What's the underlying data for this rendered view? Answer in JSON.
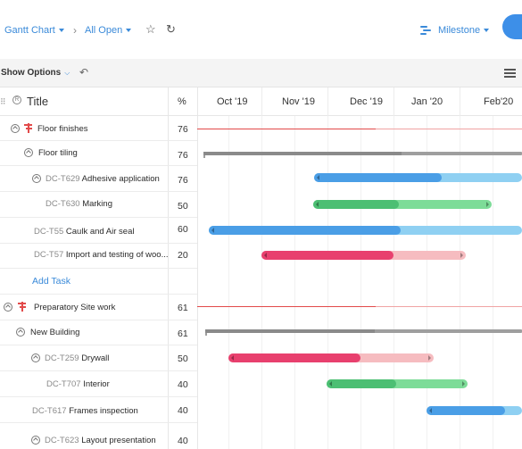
{
  "toolbar": {
    "view_label": "Gantt Chart",
    "filter_label": "All Open",
    "milestone_label": "Milestone"
  },
  "options": {
    "show_options_label": "Show Options"
  },
  "grid": {
    "title_header": "Title",
    "percent_header": "%",
    "months": [
      "Oct '19",
      "Nov '19",
      "Dec '19",
      "Jan '20",
      "Feb'20"
    ],
    "add_task_label": "Add Task"
  },
  "rows": [
    {
      "code": "",
      "name": "Floor finishes",
      "percent": "76"
    },
    {
      "code": "",
      "name": "Floor tiling",
      "percent": "76"
    },
    {
      "code": "DC-T629",
      "name": "Adhesive application",
      "percent": "76"
    },
    {
      "code": "DC-T630",
      "name": "Marking",
      "percent": "50"
    },
    {
      "code": "DC-T55",
      "name": "Caulk and Air seal",
      "percent": "60"
    },
    {
      "code": "DC-T57",
      "name": "Import and testing of woo...",
      "percent": "20"
    },
    {
      "code": "",
      "name": "Preparatory Site work",
      "percent": "61"
    },
    {
      "code": "",
      "name": "New Building",
      "percent": "61"
    },
    {
      "code": "DC-T259",
      "name": "Drywall",
      "percent": "50"
    },
    {
      "code": "DC-T707",
      "name": "Interior",
      "percent": "40"
    },
    {
      "code": "DC-T617",
      "name": "Frames inspection",
      "percent": "40"
    },
    {
      "code": "DC-T623",
      "name": "Layout presentation",
      "percent": "40"
    }
  ],
  "colors": {
    "accent": "#3a8ad9",
    "milestone": "#e24a4a",
    "blue_done": "#4a9ee6",
    "blue_rest": "#8fd0f2",
    "green_done": "#4cbf73",
    "green_rest": "#7ddc98",
    "pink_done": "#e8406e",
    "pink_rest": "#f6bcc0",
    "group_bar": "#9e9e9e"
  },
  "icons": {
    "view_caret": "caret-down-icon",
    "breadcrumb": "chevron-right-icon",
    "star": "star-icon",
    "refresh": "refresh-icon",
    "milestone": "milestone-icon",
    "undo": "undo-icon",
    "layout": "layout-icon"
  }
}
